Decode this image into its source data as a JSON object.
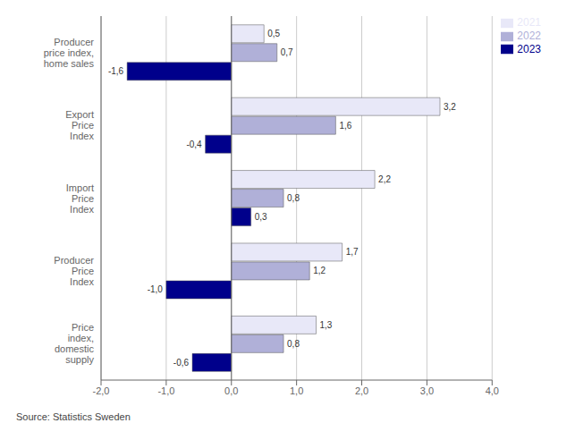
{
  "chart_data": {
    "type": "bar",
    "orientation": "horizontal",
    "categories": [
      "Producer\nprice index,\nhome sales",
      "Export\nPrice\nIndex",
      "Import\nPrice\nIndex",
      "Producer\nPrice\nIndex",
      "Price\nindex,\ndomestic\nsupply"
    ],
    "series": [
      {
        "name": "2021",
        "color": "#e8e8f8",
        "values": [
          0.5,
          3.2,
          2.2,
          1.7,
          1.3
        ],
        "value_labels": [
          "0,5",
          "3,2",
          "2,2",
          "1,7",
          "1,3"
        ]
      },
      {
        "name": "2022",
        "color": "#b0b0d8",
        "values": [
          0.7,
          1.6,
          0.8,
          1.2,
          0.8
        ],
        "value_labels": [
          "0,7",
          "1,6",
          "0,8",
          "1,2",
          "0,8"
        ]
      },
      {
        "name": "2023",
        "color": "#00008b",
        "values": [
          -1.6,
          -0.4,
          0.3,
          -1.0,
          -0.6
        ],
        "value_labels": [
          "-1,6",
          "-0,4",
          "0,3",
          "-1,0",
          "-0,6"
        ]
      }
    ],
    "xlim": [
      -2.0,
      4.0
    ],
    "xticks": [
      {
        "value": -2.0,
        "label": "-2,0"
      },
      {
        "value": -1.0,
        "label": "-1,0"
      },
      {
        "value": 0.0,
        "label": "0,0"
      },
      {
        "value": 1.0,
        "label": "1,0"
      },
      {
        "value": 2.0,
        "label": "2,0"
      },
      {
        "value": 3.0,
        "label": "3,0"
      },
      {
        "value": 4.0,
        "label": "4,0"
      }
    ],
    "grid": true,
    "legend": "right",
    "data_labels": true,
    "annotations": [
      "Source: Statistics Sweden"
    ]
  }
}
